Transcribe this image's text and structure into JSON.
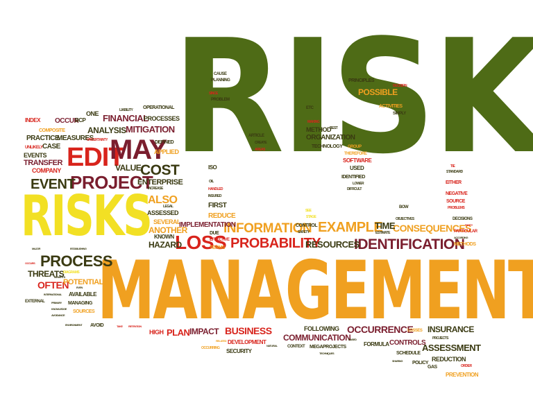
{
  "colors": {
    "dark_green": "#4e6b16",
    "orange": "#f0a020",
    "yellow": "#f2e024",
    "red": "#d8241c",
    "maroon": "#7a1e2e",
    "dark_olive": "#3a3a12",
    "olive": "#8a7a1e"
  },
  "words": {
    "risk": "RISK",
    "management": "MANAGEMENT",
    "risks": "RISKS",
    "edit": "EDIT",
    "may": "MAY",
    "project": "PROJECT",
    "event": "EVENT",
    "cost": "COST",
    "loss": "LOSS",
    "probability": "PROBABILITY",
    "information": "INFORMATION",
    "example": "EXAMPLE",
    "identification": "IDENTIFICATION",
    "process": "PROCESS",
    "consequences": "CONSEQUENCES",
    "resources": "RESOURCES",
    "time": "TIME",
    "often": "OFTEN",
    "threats": "THREATS",
    "potential": "POTENTIAL",
    "hazard": "HAZARD",
    "another": "ANOTHER",
    "also": "ALSO",
    "enterprise": "ENTERPRISE",
    "value": "VALUE",
    "analysis": "ANALYSIS",
    "financial": "FINANCIAL",
    "mitigation": "MITIGATION",
    "processes": "PROCESSES",
    "applied": "APPLIED",
    "defined": "DEFINED",
    "measures": "MEASURES",
    "practice": "PRACTICE",
    "case": "CASE",
    "events": "EVENTS",
    "transfer": "TRANSFER",
    "company": "COMPANY",
    "composite": "COMPOSITE",
    "unlikely": "UNLIKELY",
    "index": "INDEX",
    "occur": "OCCUR",
    "bcp": "BCP",
    "one": "ONE",
    "liability": "LIABILITY",
    "operational": "OPERATIONAL",
    "uncertainty": "UNCERTAINTY",
    "increase": "INCREASE",
    "legal": "LEGAL",
    "assessed": "ASSESSED",
    "several": "SEVERAL",
    "known": "KNOWN",
    "implementation": "IMPLEMENTATION",
    "due": "DUE",
    "effective": "EFFECTIVE",
    "terms": "TERMS",
    "reduce": "REDUCE",
    "first": "FIRST",
    "iso": "ISO",
    "oil": "OIL",
    "insured": "INSURED",
    "handled": "HANDLED",
    "cause": "CAUSE",
    "planning": "PLANNING",
    "since": "SINCE",
    "problem": "PROBLEM",
    "article": "ARTICLE",
    "create": "CREATE",
    "areas": "AREAS",
    "principles": "PRINCIPLES",
    "possible": "POSSIBLE",
    "decision": "DECISION",
    "activities": "ACTIVITIES",
    "simply": "SIMPLY",
    "etc": "ETC",
    "making": "MAKING",
    "method": "METHOD",
    "best": "BEST",
    "organization": "ORGANIZATION",
    "technology": "TECHNOLOGY",
    "group": "GROUP",
    "therefore": "THEREFORE",
    "software": "SOFTWARE",
    "used": "USED",
    "identified": "IDENTIFIED",
    "lower": "LOWER",
    "difficult": "DIFFICULT",
    "tie": "TIE",
    "standard": "STANDARD",
    "either": "EITHER",
    "negative": "NEGATIVE",
    "source": "SOURCE",
    "problems": "PROBLEMS",
    "bow": "BOW",
    "see": "SEE",
    "stage": "STAGE",
    "control": "CONTROL",
    "safety": "SAFETY",
    "objectives": "OBJECTIVES",
    "estimate": "ESTIMATE",
    "decisions": "DECISIONS",
    "party": "PARTY",
    "particular": "PARTICULAR",
    "according": "ACCORDING",
    "methods": "METHODS",
    "major": "MAJOR",
    "establishing": "ESTABLISHING",
    "occurs": "OCCURS",
    "diagrams": "DIAGRAMS",
    "benefits": "BENEFITS",
    "even": "EVEN",
    "available": "AVAILABLE",
    "international": "INTERNATIONAL",
    "external": "EXTERNAL",
    "primary": "PRIMARY",
    "managing": "MANAGING",
    "knowledge": "KNOWLEDGE",
    "sources": "SOURCES",
    "avoidance": "AVOIDANCE",
    "environment": "ENVIRONMENT",
    "avoid": "AVOID",
    "take": "TAKE",
    "retention": "RETENTION",
    "high": "HIGH",
    "plan": "PLAN",
    "impact": "IMPACT",
    "business": "BUSINESS",
    "development": "DEVELOPMENT",
    "security": "SECURITY",
    "related": "RELATED",
    "occurring": "OCCURRING",
    "natural": "NATURAL",
    "context": "CONTEXT",
    "following": "FOLLOWING",
    "communication": "COMMUNICATION",
    "megaprojects": "MEGAPROJECTS",
    "techniques": "TECHNIQUES",
    "occurrence": "OCCURRENCE",
    "based": "BASED",
    "formula": "FORMULA",
    "controls": "CONTROLS",
    "losses": "LOSSES",
    "schedule": "SCHEDULE",
    "sharing": "SHARING",
    "policy": "POLICY",
    "insurance": "INSURANCE",
    "projects": "PROJECTS",
    "assessment": "ASSESSMENT",
    "reduction": "REDUCTION",
    "gas": "GAS",
    "order": "ORDER",
    "prevention": "PREVENTION"
  }
}
